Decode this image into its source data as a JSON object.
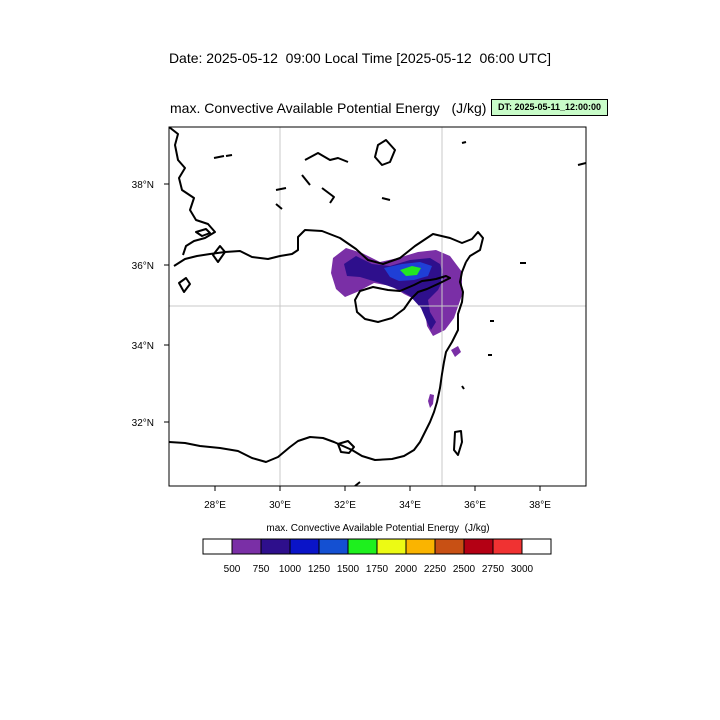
{
  "header": {
    "date_line": "Date: 2025-05-12  09:00 Local Time [2025-05-12  06:00 UTC]",
    "plot_title": "max. Convective Available Potential Energy   (J/kg)",
    "dt_badge": "DT: 2025-05-11_12:00:00"
  },
  "map": {
    "lon_ticks": [
      "28°E",
      "30°E",
      "32°E",
      "34°E",
      "36°E",
      "38°E"
    ],
    "lat_ticks": [
      "38°N",
      "36°N",
      "34°N",
      "32°N"
    ],
    "lon_range": [
      26.6,
      39.4
    ],
    "lat_range": [
      30.5,
      39.5
    ],
    "gridlines": [
      "30°E",
      "35°E",
      "35°N"
    ],
    "field_colors": [
      "#7a2fa6",
      "#2e0f8c",
      "#1f3fd6",
      "#22e622"
    ]
  },
  "colorbar": {
    "title": "max. Convective Available Potential Energy  (J/kg)",
    "colors": [
      "#ffffff",
      "#7a2fa6",
      "#2e0f8c",
      "#0a14c8",
      "#1450d2",
      "#1ef01e",
      "#ecfa14",
      "#fab400",
      "#c85014",
      "#b40014",
      "#f03232",
      "#ffffff"
    ],
    "labels": [
      "500",
      "750",
      "1000",
      "1250",
      "1500",
      "1750",
      "2000",
      "2250",
      "2500",
      "2750",
      "3000"
    ]
  }
}
